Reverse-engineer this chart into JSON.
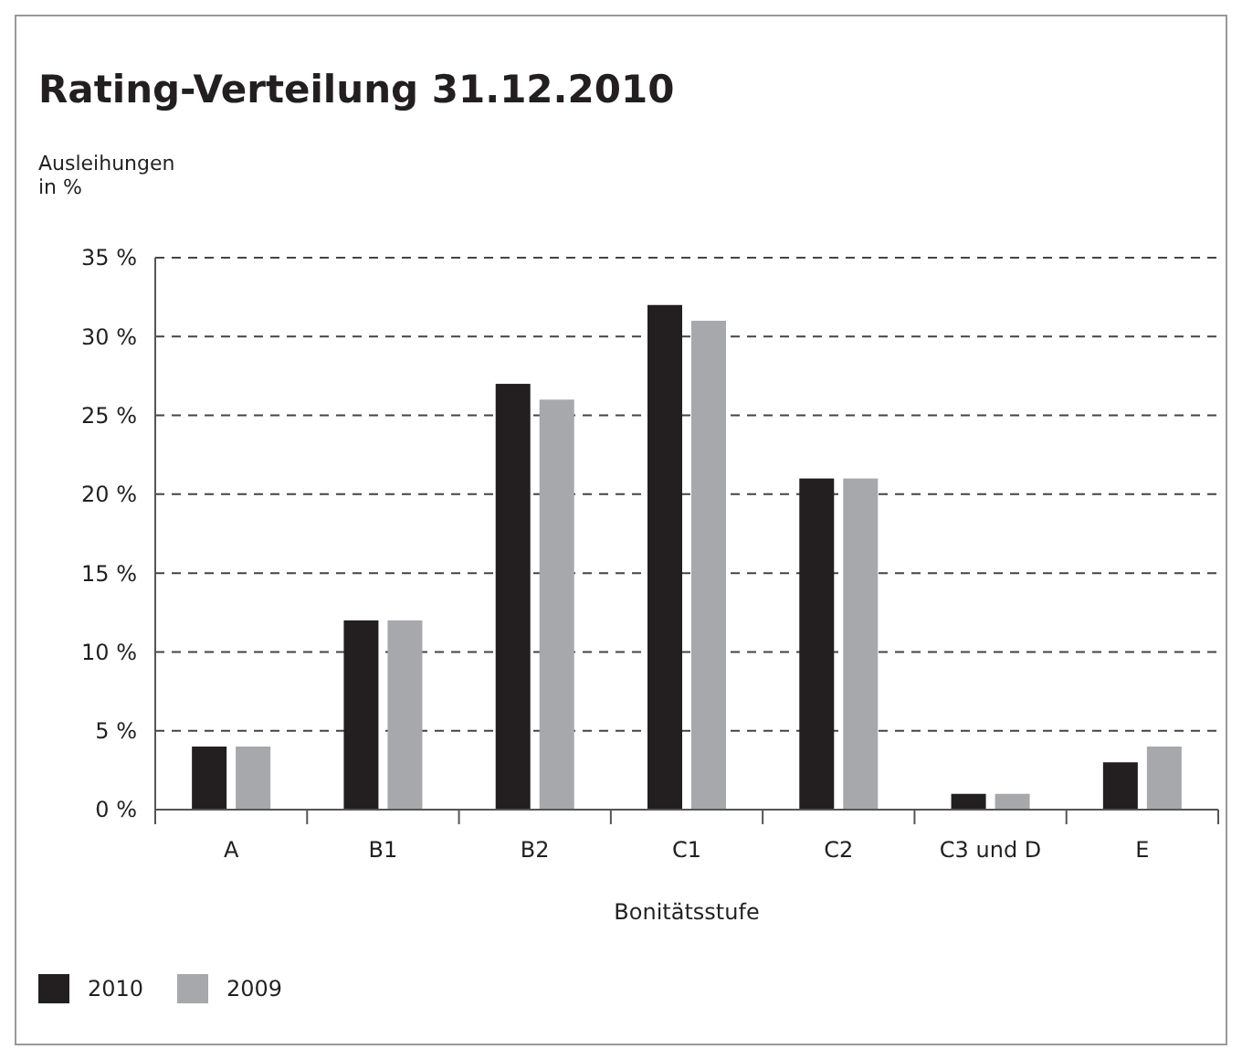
{
  "chart_data": {
    "type": "bar",
    "title": "Rating-Verteilung 31.12.2010",
    "ylabel": "Ausleihungen in %",
    "xlabel": "Bonitätsstufe",
    "categories": [
      "A",
      "B1",
      "B2",
      "C1",
      "C2",
      "C3 und D",
      "E"
    ],
    "series": [
      {
        "name": "2010",
        "color": "#231f20",
        "values": [
          4,
          12,
          27,
          32,
          21,
          1,
          3
        ]
      },
      {
        "name": "2009",
        "color": "#a7a8ab",
        "values": [
          4,
          12,
          26,
          31,
          21,
          1,
          4
        ]
      }
    ],
    "ylim": [
      0,
      35
    ],
    "yticks": [
      {
        "value": 0,
        "label": "0 %"
      },
      {
        "value": 5,
        "label": "5 %"
      },
      {
        "value": 10,
        "label": "10 %"
      },
      {
        "value": 15,
        "label": "15 %"
      },
      {
        "value": 20,
        "label": "20 %"
      },
      {
        "value": 25,
        "label": "25 %"
      },
      {
        "value": 30,
        "label": "30 %"
      },
      {
        "value": 35,
        "label": "35 %"
      }
    ],
    "grid": "y",
    "legend": "bottom left"
  }
}
